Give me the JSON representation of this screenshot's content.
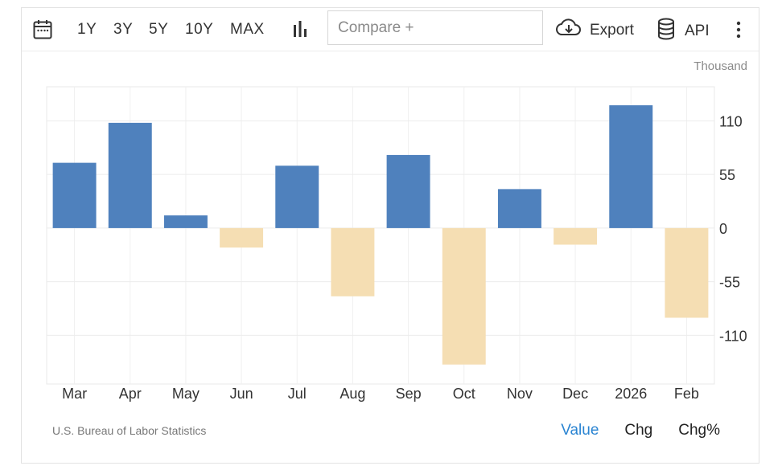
{
  "toolbar": {
    "ranges": [
      "1Y",
      "3Y",
      "5Y",
      "10Y",
      "MAX"
    ],
    "compare_placeholder": "Compare +",
    "export_label": "Export",
    "api_label": "API",
    "icons": {
      "calendar": "calendar-icon",
      "chart_type": "bar-chart-icon",
      "export": "cloud-download-icon",
      "api": "database-icon",
      "more": "more-vertical-icon"
    }
  },
  "unit_label": "Thousand",
  "source": "U.S. Bureau of Labor Statistics",
  "view_modes": [
    "Value",
    "Chg",
    "Chg%"
  ],
  "active_mode": "Value",
  "colors": {
    "positive": "#4f81bd",
    "negative": "#f5deb3",
    "active_mode": "#2a84d2"
  },
  "chart_data": {
    "type": "bar",
    "categories": [
      "Mar",
      "Apr",
      "May",
      "Jun",
      "Jul",
      "Aug",
      "Sep",
      "Oct",
      "Nov",
      "Dec",
      "2026",
      "Feb"
    ],
    "values": [
      67,
      108,
      13,
      -20,
      64,
      -70,
      75,
      -140,
      40,
      -17,
      126,
      -92
    ],
    "ylim": [
      -160,
      145
    ],
    "yticks": [
      110,
      55,
      0,
      -55,
      -110
    ],
    "ytick_labels": [
      "110",
      "55",
      "0",
      "-55",
      "-110"
    ],
    "ylabel": "Thousand",
    "xlabel": "",
    "title": "",
    "grid": true,
    "yaxis_side": "right"
  }
}
